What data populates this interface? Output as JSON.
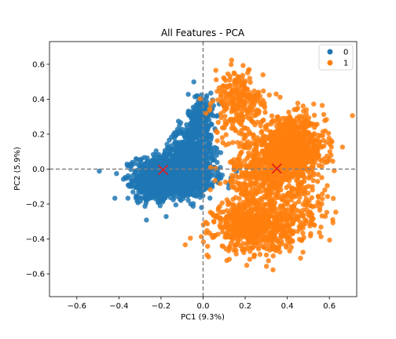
{
  "chart_data": {
    "type": "scatter",
    "title": "All Features - PCA",
    "xlabel": "PC1 (9.3%)",
    "ylabel": "PC2 (5.9%)",
    "xlim": [
      -0.73,
      0.73
    ],
    "ylim": [
      -0.73,
      0.73
    ],
    "xticks": [
      -0.6,
      -0.4,
      -0.2,
      0.0,
      0.2,
      0.4,
      0.6
    ],
    "yticks": [
      -0.6,
      -0.4,
      -0.2,
      0.0,
      0.2,
      0.4,
      0.6
    ],
    "xtick_labels": [
      "−0.6",
      "−0.4",
      "−0.2",
      "0.0",
      "0.2",
      "0.4",
      "0.6"
    ],
    "ytick_labels": [
      "−0.6",
      "−0.4",
      "−0.2",
      "0.0",
      "0.2",
      "0.4",
      "0.6"
    ],
    "grid": false,
    "reference_lines": {
      "x": 0.0,
      "y": 0.0,
      "style": "dashed",
      "color": "#808080"
    },
    "legend": {
      "placement": "top-right",
      "entries": [
        "0",
        "1"
      ]
    },
    "series": [
      {
        "name": "0",
        "color": "#1f77b4",
        "clusters": [
          {
            "center": [
              -0.13,
              -0.04
            ],
            "spread": [
              0.09,
              0.06
            ],
            "count": 1300
          },
          {
            "center": [
              -0.06,
              0.1
            ],
            "spread": [
              0.05,
              0.07
            ],
            "count": 500
          },
          {
            "center": [
              -0.01,
              0.28
            ],
            "spread": [
              0.03,
              0.08
            ],
            "count": 220
          },
          {
            "center": [
              -0.25,
              -0.08
            ],
            "spread": [
              0.04,
              0.05
            ],
            "count": 250
          }
        ]
      },
      {
        "name": "1",
        "color": "#ff7f0e",
        "clusters": [
          {
            "center": [
              0.42,
              0.11
            ],
            "spread": [
              0.08,
              0.09
            ],
            "count": 900
          },
          {
            "center": [
              0.24,
              -0.33
            ],
            "spread": [
              0.09,
              0.07
            ],
            "count": 700
          },
          {
            "center": [
              0.17,
              0.38
            ],
            "spread": [
              0.06,
              0.09
            ],
            "count": 260
          },
          {
            "center": [
              0.27,
              -0.03
            ],
            "spread": [
              0.08,
              0.12
            ],
            "count": 450
          },
          {
            "center": [
              0.47,
              -0.23
            ],
            "spread": [
              0.07,
              0.1
            ],
            "count": 150
          }
        ]
      }
    ],
    "centroids": [
      {
        "series": "0",
        "x": -0.19,
        "y": -0.005,
        "marker": "x",
        "color": "#e8171e"
      },
      {
        "series": "1",
        "x": 0.35,
        "y": 0.003,
        "marker": "x",
        "color": "#e8171e"
      }
    ]
  }
}
